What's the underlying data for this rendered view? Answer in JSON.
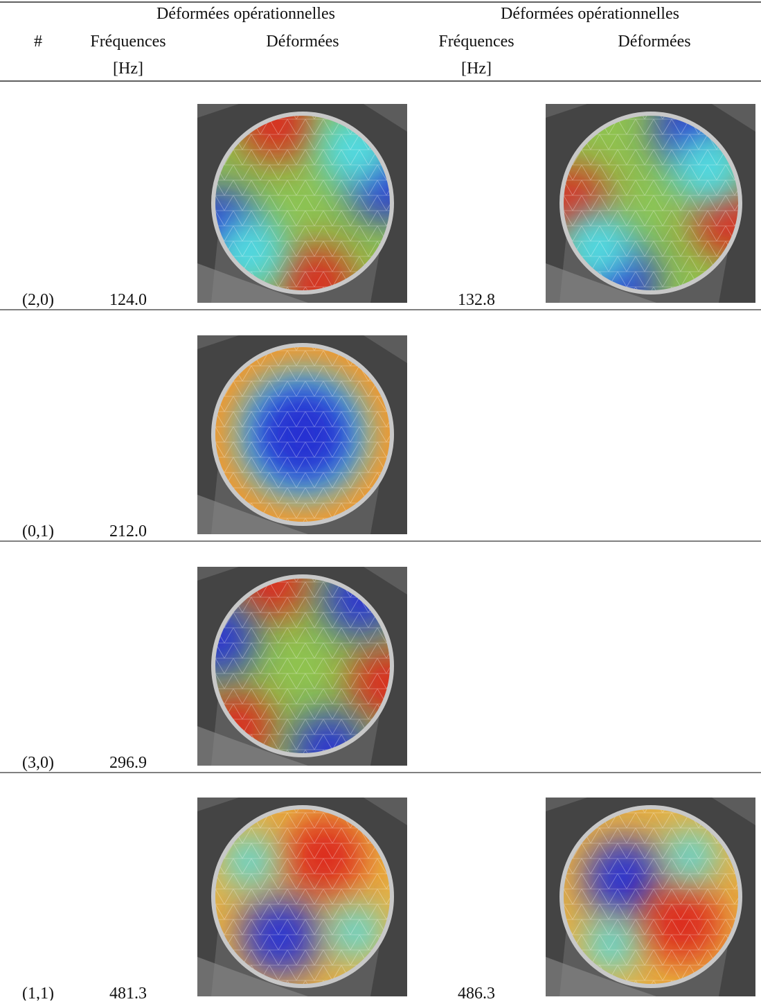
{
  "table": {
    "group_headers": [
      "Déformées opérationnelles",
      "Déformées opérationnelles"
    ],
    "columns": {
      "number": "#",
      "frequency": "Fréquences",
      "unit": "[Hz]",
      "shape": "Déformées"
    },
    "rows": [
      {
        "mode": "(2,0)",
        "frequencies": [
          "124.0",
          "132.8"
        ]
      },
      {
        "mode": "(0,1)",
        "frequencies": [
          "212.0"
        ]
      },
      {
        "mode": "(3,0)",
        "frequencies": [
          "296.9"
        ]
      },
      {
        "mode": "(1,1)",
        "frequencies": [
          "481.3",
          "486.3"
        ]
      }
    ]
  }
}
